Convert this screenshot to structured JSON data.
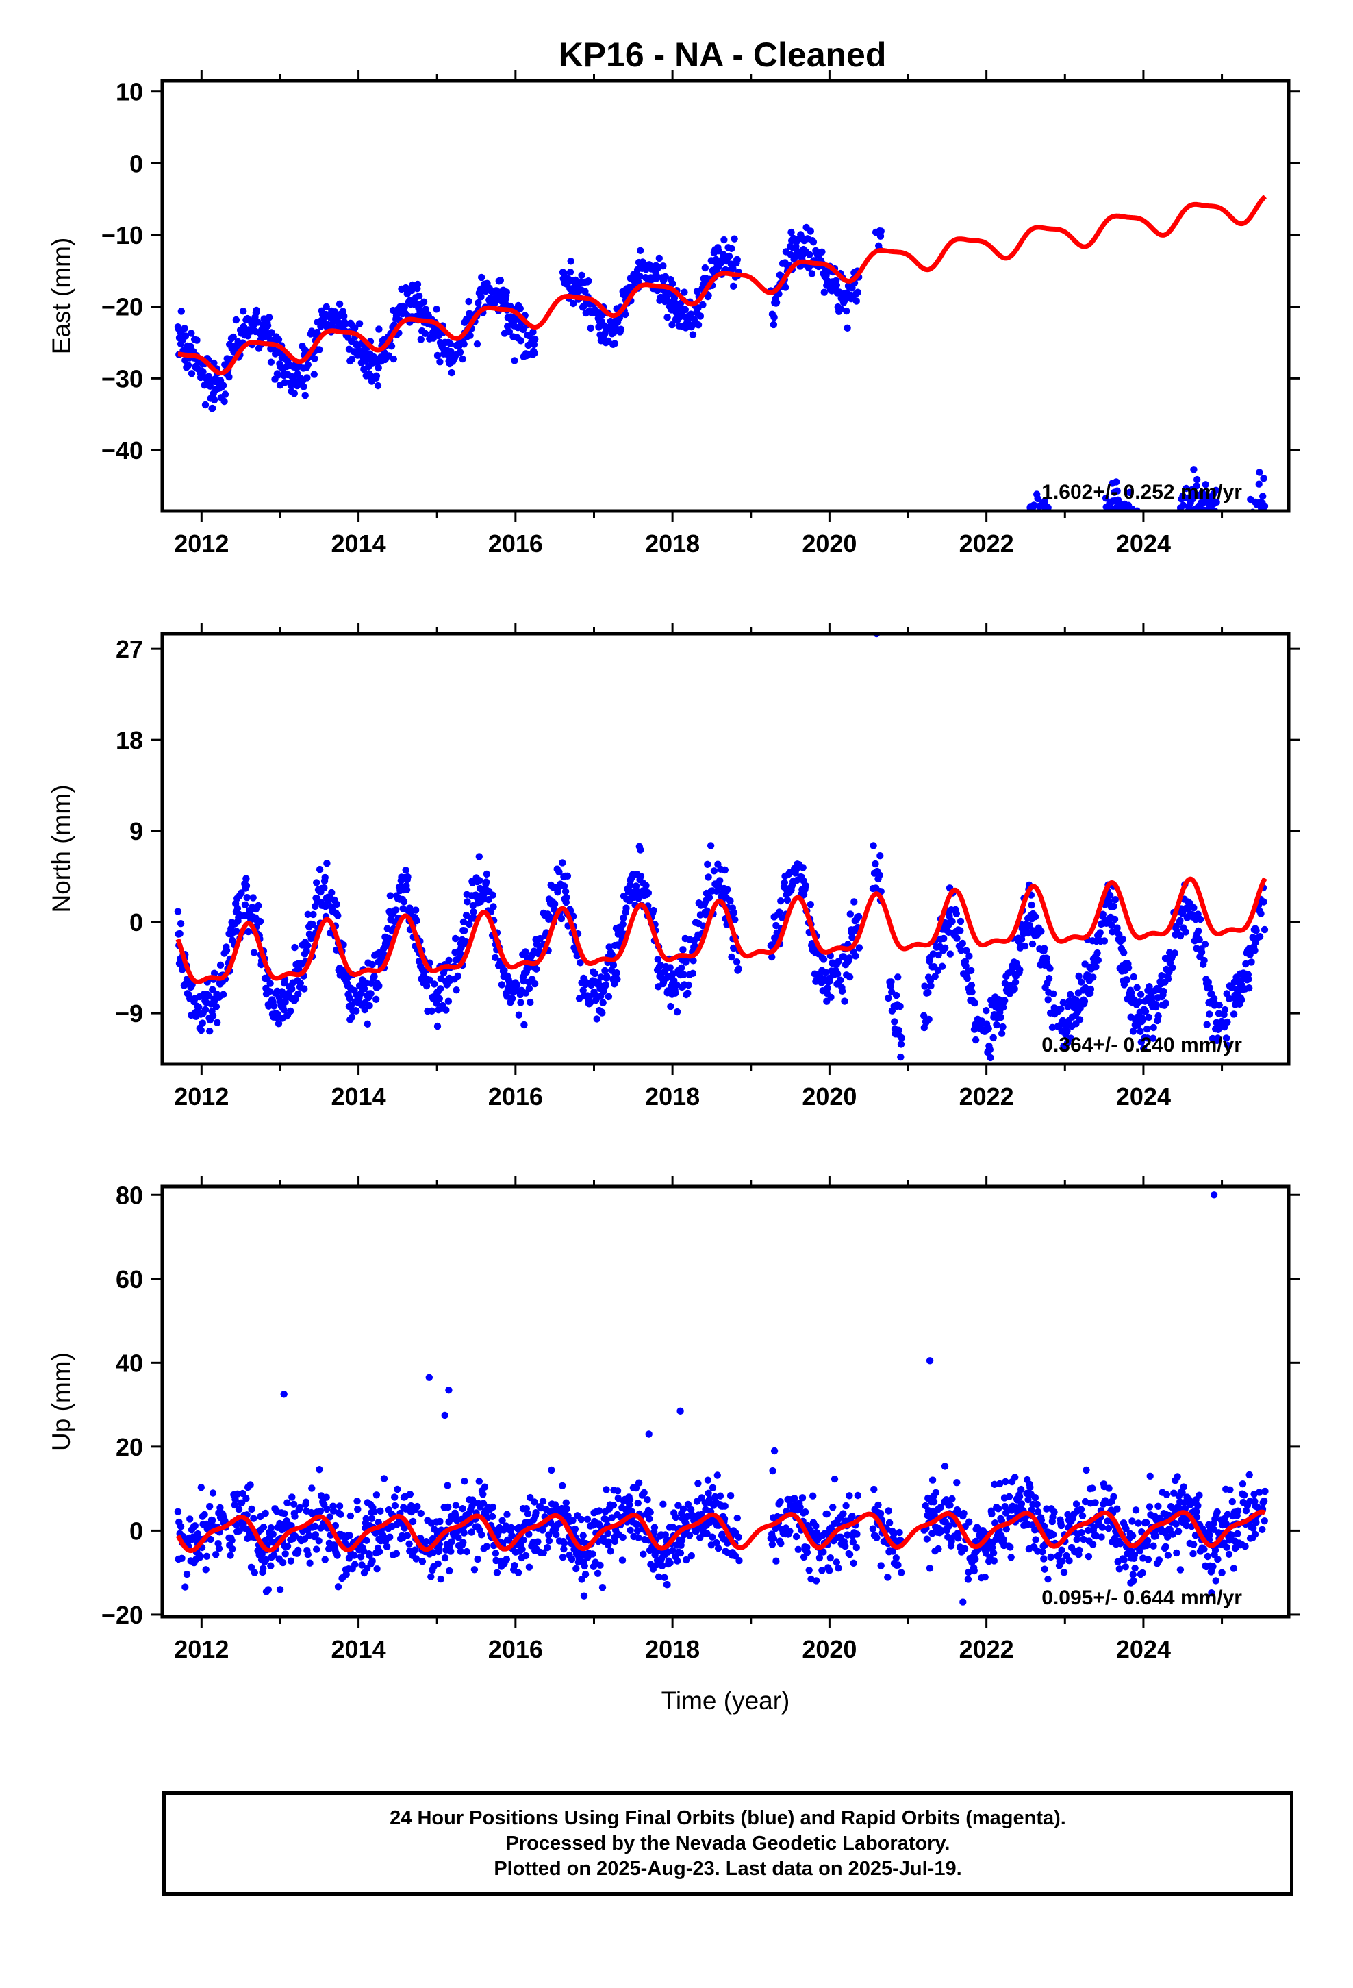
{
  "title": "KP16  - NA - Cleaned",
  "footer": {
    "line1": "24 Hour Positions Using Final Orbits (blue) and Rapid Orbits (magenta).",
    "line2": "Processed by the Nevada Geodetic Laboratory.",
    "line3": "Plotted on 2025-Aug-23. Last data on 2025-Jul-19."
  },
  "colors": {
    "final_orbits": "#0000ff",
    "model_fit": "#ff0000",
    "frame": "#000000"
  },
  "chart_data": [
    {
      "type": "scatter",
      "id": "east",
      "ylabel": "East (mm)",
      "xlabel": "",
      "xlim": [
        2011.5,
        2025.85
      ],
      "ylim": [
        -48.5,
        11.5
      ],
      "xticks": [
        2012,
        2014,
        2016,
        2018,
        2020,
        2022,
        2024
      ],
      "yticks": [
        10,
        0,
        -10,
        -20,
        -30,
        -40
      ],
      "rate_label": "1.602+/- 0.252 mm/yr",
      "data_span": [
        2011.7,
        2025.55
      ],
      "gaps": [
        [
          2016.25,
          2016.6
        ],
        [
          2018.85,
          2019.25
        ],
        [
          2020.38,
          2020.55
        ],
        [
          2020.66,
          2020.75
        ],
        [
          2020.92,
          2021.2
        ]
      ],
      "segments": [
        {
          "start": 2011.7,
          "end": 2020.66,
          "offset": 0,
          "outliers": []
        },
        {
          "start": 2020.75,
          "end": 2025.55,
          "offset": -42.65,
          "outliers": []
        }
      ],
      "model": {
        "intercept": -28.3,
        "rate": 1.602,
        "annual_amp": 1.7,
        "annual_phase": 0.1,
        "semi_amp": 0.5,
        "semi_phase": 1.2,
        "scatter_sd": 1.5,
        "residual_amp": 2.3
      },
      "series": [
        {
          "name": "Final Orbits (blue)",
          "kind": "points"
        },
        {
          "name": "model",
          "kind": "line"
        }
      ]
    },
    {
      "type": "scatter",
      "id": "north",
      "ylabel": "North (mm)",
      "xlabel": "",
      "xlim": [
        2011.5,
        2025.85
      ],
      "ylim": [
        -14.0,
        28.5
      ],
      "xticks": [
        2012,
        2014,
        2016,
        2018,
        2020,
        2022,
        2024
      ],
      "yticks": [
        27,
        18,
        9,
        0,
        -9
      ],
      "rate_label": "0.364+/- 0.240 mm/yr",
      "data_span": [
        2011.7,
        2025.55
      ],
      "gaps": [
        [
          2018.85,
          2019.25
        ],
        [
          2020.38,
          2020.55
        ],
        [
          2020.66,
          2020.75
        ],
        [
          2020.92,
          2021.2
        ]
      ],
      "segments": [
        {
          "start": 2011.7,
          "end": 2020.66,
          "offset": 0,
          "outliers": [
            [
              2020.6,
              28.5
            ]
          ]
        },
        {
          "start": 2020.75,
          "end": 2025.55,
          "offset": -5.4,
          "outliers": []
        }
      ],
      "model": {
        "intercept": -4.1,
        "rate": 0.364,
        "annual_amp": 2.6,
        "annual_phase": 1.0,
        "semi_amp": 1.0,
        "semi_phase": 0.3,
        "scatter_sd": 1.4,
        "residual_amp": 3.0
      },
      "series": [
        {
          "name": "Final Orbits (blue)",
          "kind": "points"
        },
        {
          "name": "model",
          "kind": "line"
        }
      ]
    },
    {
      "type": "scatter",
      "id": "up",
      "ylabel": "Up (mm)",
      "xlabel": "Time (year)",
      "xlim": [
        2011.5,
        2025.85
      ],
      "ylim": [
        -20.5,
        82.0
      ],
      "xticks": [
        2012,
        2014,
        2016,
        2018,
        2020,
        2022,
        2024
      ],
      "yticks": [
        80,
        60,
        40,
        20,
        0,
        -20
      ],
      "rate_label": "0.095+/- 0.644 mm/yr",
      "data_span": [
        2011.7,
        2025.55
      ],
      "gaps": [
        [
          2018.85,
          2019.25
        ],
        [
          2020.38,
          2020.55
        ],
        [
          2020.92,
          2021.2
        ]
      ],
      "segments": [
        {
          "start": 2011.7,
          "end": 2020.92,
          "offset": 0,
          "outliers": [
            [
              2013.05,
              32.5
            ],
            [
              2014.9,
              36.5
            ],
            [
              2015.15,
              33.5
            ],
            [
              2015.1,
              27.5
            ],
            [
              2018.1,
              28.5
            ],
            [
              2017.7,
              23.0
            ],
            [
              2019.3,
              19.0
            ]
          ]
        },
        {
          "start": 2021.2,
          "end": 2025.55,
          "offset": 0,
          "outliers": [
            [
              2021.28,
              40.5
            ],
            [
              2024.9,
              80.0
            ],
            [
              2021.7,
              -17.0
            ]
          ]
        }
      ],
      "model": {
        "intercept": -0.5,
        "rate": 0.095,
        "annual_amp": 3.4,
        "annual_phase": 2.1,
        "semi_amp": 1.2,
        "semi_phase": 0.6,
        "scatter_sd": 4.5,
        "residual_amp": 0.0
      },
      "series": [
        {
          "name": "Final Orbits (blue)",
          "kind": "points"
        },
        {
          "name": "model",
          "kind": "line"
        }
      ]
    }
  ]
}
